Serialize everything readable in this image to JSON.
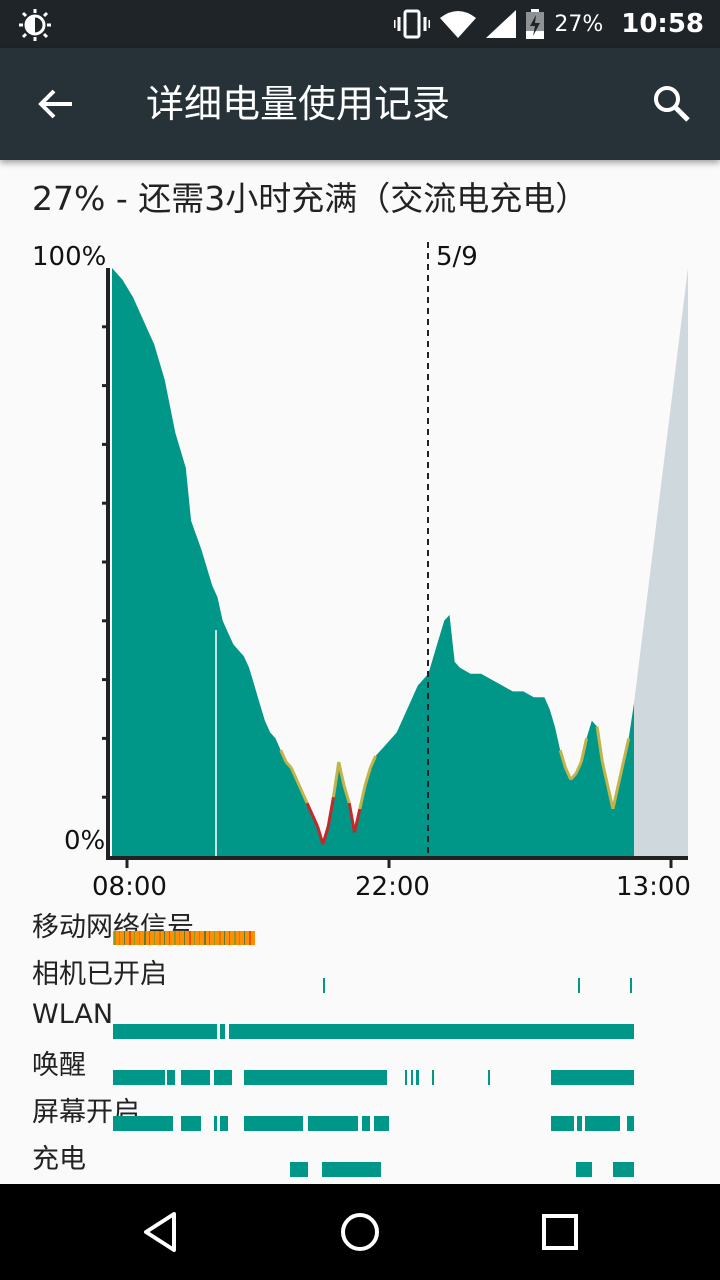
{
  "status_bar": {
    "battery_percent": "27%",
    "time": "10:58",
    "icons": [
      "brightness-icon",
      "vibrate-icon",
      "wifi-icon",
      "cell-signal-icon",
      "battery-charging-icon"
    ]
  },
  "toolbar": {
    "title": "详细电量使用记录",
    "back_icon": "back-arrow-icon",
    "search_icon": "search-icon"
  },
  "summary": "27% - 还需3小时充满（交流电充电）",
  "chart_data": {
    "type": "area",
    "ylabel_top": "100%",
    "ylabel_bottom": "0%",
    "ylim": [
      0,
      100
    ],
    "x_ticks": [
      "08:00",
      "22:00",
      "13:00"
    ],
    "date_marker": "5/9",
    "projection_color": "#cfd8dc",
    "battery_color": "#009688",
    "series": [
      {
        "values_pct_over_time": [
          [
            0,
            100
          ],
          [
            2,
            98
          ],
          [
            4,
            95
          ],
          [
            6,
            91
          ],
          [
            8,
            87
          ],
          [
            10,
            81
          ],
          [
            12,
            72
          ],
          [
            14,
            66
          ],
          [
            15,
            57
          ],
          [
            17,
            52
          ],
          [
            18,
            49
          ],
          [
            19,
            46
          ],
          [
            20,
            44
          ],
          [
            21,
            40
          ],
          [
            22,
            38
          ],
          [
            23,
            36
          ],
          [
            24,
            35
          ],
          [
            25,
            34
          ],
          [
            26,
            32
          ],
          [
            27,
            29
          ],
          [
            28,
            26
          ],
          [
            29,
            23
          ],
          [
            30,
            21
          ],
          [
            31,
            20
          ],
          [
            32,
            18
          ],
          [
            33,
            16
          ],
          [
            34,
            15
          ],
          [
            35,
            13
          ],
          [
            36,
            11
          ],
          [
            37,
            9
          ],
          [
            38,
            7
          ],
          [
            39,
            5
          ],
          [
            40,
            2
          ],
          [
            41,
            5
          ],
          [
            42,
            10
          ],
          [
            43,
            16
          ],
          [
            44,
            12
          ],
          [
            45,
            9
          ],
          [
            46,
            4
          ],
          [
            47,
            8
          ],
          [
            48,
            12
          ],
          [
            49,
            15
          ],
          [
            50,
            17
          ],
          [
            52,
            19
          ],
          [
            54,
            21
          ],
          [
            56,
            25
          ],
          [
            58,
            29
          ],
          [
            60,
            31
          ],
          [
            61,
            34
          ],
          [
            62,
            37
          ],
          [
            63,
            40
          ],
          [
            64,
            41
          ],
          [
            65,
            33
          ],
          [
            66,
            32
          ],
          [
            68,
            31
          ],
          [
            70,
            31
          ],
          [
            72,
            30
          ],
          [
            74,
            29
          ],
          [
            76,
            28
          ],
          [
            78,
            28
          ],
          [
            80,
            27
          ],
          [
            82,
            27
          ],
          [
            83,
            25
          ],
          [
            84,
            22
          ],
          [
            85,
            18
          ],
          [
            86,
            15
          ],
          [
            87,
            13
          ],
          [
            88,
            14
          ],
          [
            89,
            16
          ],
          [
            90,
            20
          ],
          [
            91,
            23
          ],
          [
            92,
            22
          ],
          [
            93,
            16
          ],
          [
            94,
            12
          ],
          [
            95,
            8
          ],
          [
            96,
            12
          ],
          [
            97,
            16
          ],
          [
            98,
            20
          ],
          [
            99,
            26
          ]
        ]
      }
    ]
  },
  "tracks": [
    {
      "label": "移动网络信号"
    },
    {
      "label": "相机已开启"
    },
    {
      "label": "WLAN"
    },
    {
      "label": "唤醒"
    },
    {
      "label": "屏幕开启"
    },
    {
      "label": "充电"
    }
  ],
  "navbar": {
    "icons": [
      "back-nav-icon",
      "home-nav-icon",
      "recents-nav-icon"
    ]
  }
}
